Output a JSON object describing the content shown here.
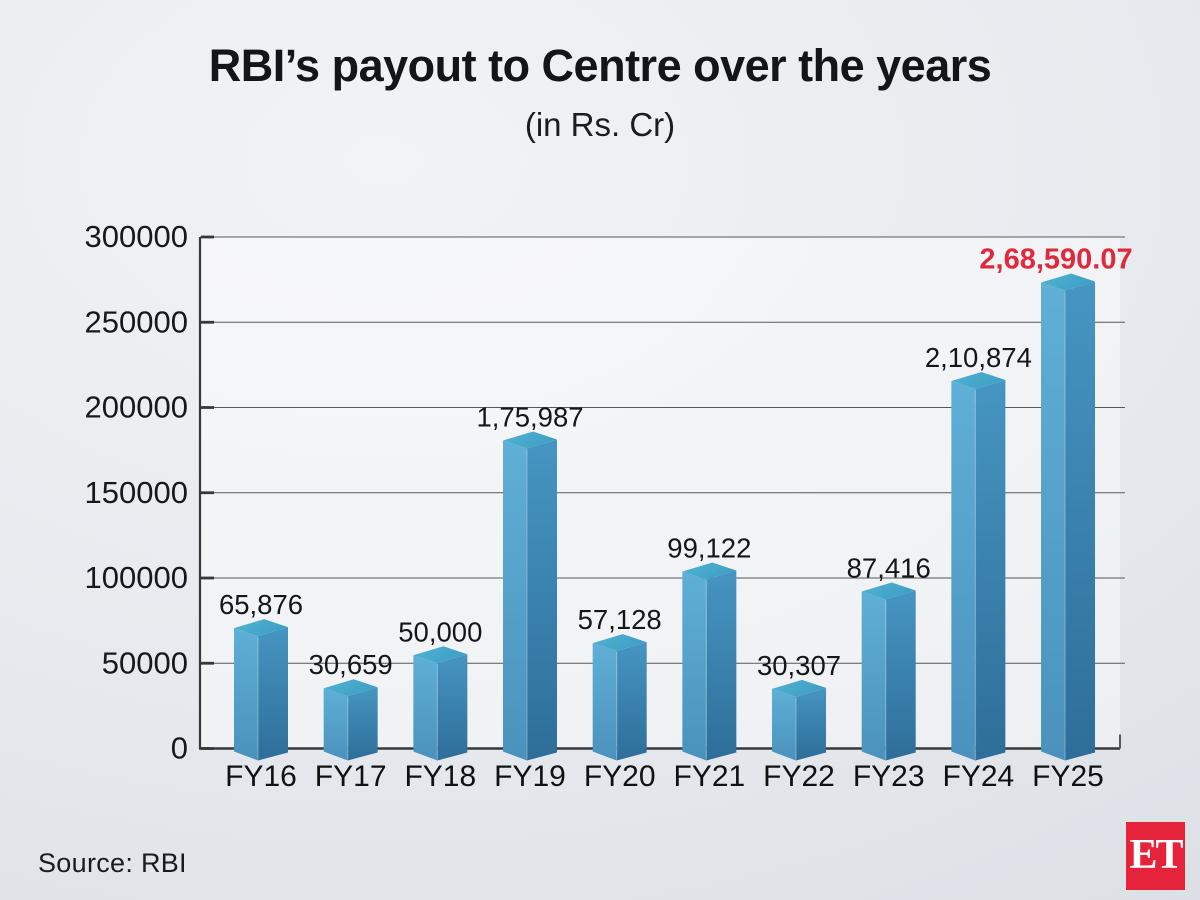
{
  "header": {
    "title": "RBI’s payout to Centre over the years",
    "subtitle": "(in Rs. Cr)"
  },
  "footer": {
    "source": "Source: RBI",
    "logo_text": "ET",
    "logo_bg": "#e5243c"
  },
  "colors": {
    "value_label": "#151618",
    "highlight": "#dd2a3d",
    "grid": "#55585c",
    "axis": "#36383b",
    "tick_label": "#17181a",
    "bar_left_top": "#5fafd6",
    "bar_left_bottom": "#4a92bc",
    "bar_right_top": "#4695c2",
    "bar_right_bottom": "#2e6e99",
    "bar_top_light": "#50b3d2",
    "bar_top_dark": "#3f9fc5"
  },
  "chart_data": {
    "type": "bar",
    "title": "RBI's payout to Centre over the years",
    "subtitle": "(in Rs. Cr)",
    "xlabel": "",
    "ylabel": "",
    "ylim": [
      0,
      300000
    ],
    "grid": true,
    "legend": false,
    "yticks": [
      0,
      50000,
      100000,
      150000,
      200000,
      250000,
      300000
    ],
    "ytick_labels": [
      "0",
      "50000",
      "100000",
      "150000",
      "200000",
      "250000",
      "300000"
    ],
    "categories": [
      "FY16",
      "FY17",
      "FY18",
      "FY19",
      "FY20",
      "FY21",
      "FY22",
      "FY23",
      "FY24",
      "FY25"
    ],
    "values": [
      65876,
      30659,
      50000,
      175987,
      57128,
      99122,
      30307,
      87416,
      210874,
      268590.07
    ],
    "value_labels": [
      "65,876",
      "30,659",
      "50,000",
      "1,75,987",
      "57,128",
      "99,122",
      "30,307",
      "87,416",
      "2,10,874",
      "2,68,590.07"
    ],
    "highlight_index": 9
  }
}
